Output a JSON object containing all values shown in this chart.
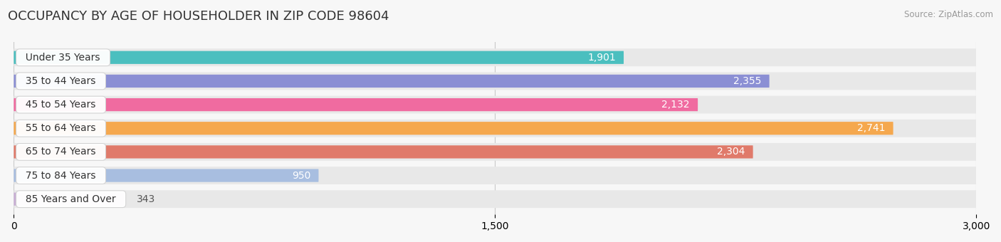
{
  "title": "OCCUPANCY BY AGE OF HOUSEHOLDER IN ZIP CODE 98604",
  "source": "Source: ZipAtlas.com",
  "categories": [
    "Under 35 Years",
    "35 to 44 Years",
    "45 to 54 Years",
    "55 to 64 Years",
    "65 to 74 Years",
    "75 to 84 Years",
    "85 Years and Over"
  ],
  "values": [
    1901,
    2355,
    2132,
    2741,
    2304,
    950,
    343
  ],
  "bar_colors": [
    "#4BBFBF",
    "#8B8FD4",
    "#F06BA0",
    "#F5A84E",
    "#E07A6A",
    "#A8BEE0",
    "#C8AED4"
  ],
  "bar_bg_color": "#E8E8E8",
  "xlim": [
    0,
    3000
  ],
  "xticks": [
    0,
    1500,
    3000
  ],
  "background_color": "#F7F7F7",
  "title_fontsize": 13,
  "label_fontsize": 10,
  "value_fontsize": 10,
  "value_threshold": 600
}
